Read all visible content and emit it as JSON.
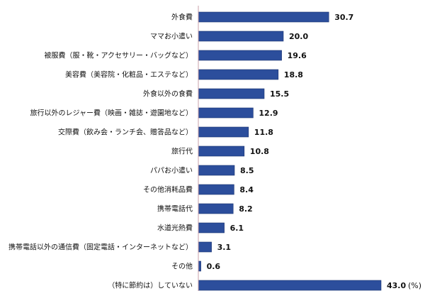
{
  "chart_data": {
    "type": "bar",
    "orientation": "horizontal",
    "unit": "(%)",
    "categories": [
      "外食費",
      "ママお小遣い",
      "被服費（服・靴・アクセサリー・バッグなど）",
      "美容費（美容院・化粧品・エステなど）",
      "外食以外の食費",
      "旅行以外のレジャー費（映画・雑誌・遊園地など）",
      "交際費（飲み会・ランチ会、贈答品など）",
      "旅行代",
      "パパお小遣い",
      "その他消耗品費",
      "携帯電話代",
      "水道光熱費",
      "携帯電話以外の通信費（固定電話・インターネットなど）",
      "その他",
      "（特に節約は）していない"
    ],
    "values": [
      30.7,
      20.0,
      19.6,
      18.8,
      15.5,
      12.9,
      11.8,
      10.8,
      8.5,
      8.4,
      8.2,
      6.1,
      3.1,
      0.6,
      43.0
    ],
    "value_labels": [
      "30.7",
      "20.0",
      "19.6",
      "18.8",
      "15.5",
      "12.9",
      "11.8",
      "10.8",
      "8.5",
      "8.4",
      "8.2",
      "6.1",
      "3.1",
      "0.6",
      "43.0"
    ],
    "xlim": [
      0,
      45
    ],
    "grid": false,
    "legend": "none",
    "colors": {
      "bar": "#2c4e9c",
      "bar_edge": "#1a3270",
      "axis": "#c8a0a8"
    }
  }
}
